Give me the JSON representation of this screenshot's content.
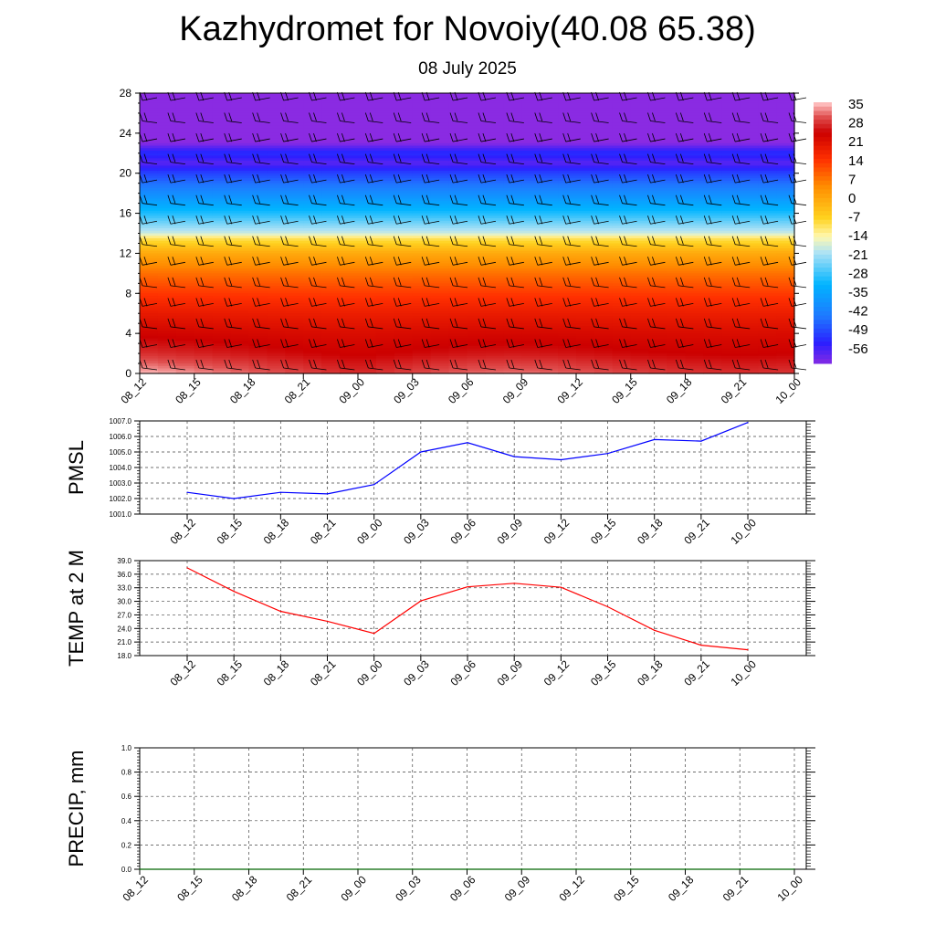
{
  "header": {
    "title": "Kazhydromet for Novoiy(40.08 65.38)",
    "subtitle": "08 July 2025"
  },
  "chart_data": [
    {
      "type": "heatmap",
      "xlabel": "",
      "ylabel": "",
      "x_ticks": [
        "08_12",
        "08_15",
        "08_18",
        "08_21",
        "09_00",
        "09_03",
        "09_06",
        "09_09",
        "09_12",
        "09_15",
        "09_18",
        "09_21",
        "10_00"
      ],
      "y_ticks": [
        "0",
        "4",
        "8",
        "12",
        "16",
        "20",
        "24",
        "28"
      ],
      "ylim": [
        0,
        28
      ],
      "colorbar": {
        "labels": [
          "35",
          "28",
          "21",
          "14",
          "7",
          "0",
          "-7",
          "-14",
          "-21",
          "-28",
          "-35",
          "-42",
          "-49",
          "-56"
        ],
        "stops": [
          {
            "value": -60,
            "color": "#8a2be2"
          },
          {
            "value": -52,
            "color": "#2b1fff"
          },
          {
            "value": -42,
            "color": "#1f78ff"
          },
          {
            "value": -30,
            "color": "#00b4ff"
          },
          {
            "value": -18,
            "color": "#aee2f5"
          },
          {
            "value": -12,
            "color": "#fff8b0"
          },
          {
            "value": -5,
            "color": "#ffd21f"
          },
          {
            "value": 7,
            "color": "#ff8c00"
          },
          {
            "value": 17,
            "color": "#ff3000"
          },
          {
            "value": 27,
            "color": "#cc0000"
          },
          {
            "value": 33,
            "color": "#e05050"
          },
          {
            "value": 38,
            "color": "#ffc0c0"
          }
        ]
      },
      "temperature_profile": {
        "heights": [
          0,
          2,
          4,
          6,
          8,
          10,
          12,
          13.5,
          14,
          16,
          18,
          20,
          21,
          22,
          23,
          28
        ],
        "values": [
          33,
          28,
          25,
          21,
          16,
          10,
          2,
          -8,
          -16,
          -28,
          -38,
          -48,
          -56,
          -50,
          -60,
          -60
        ],
        "diurnal_surface_anomaly": [
          5,
          3,
          1,
          -1,
          -3,
          -1,
          1,
          1.5,
          0.5,
          -1,
          -2,
          -2.5,
          -2
        ]
      },
      "wind_barbs": true
    },
    {
      "type": "line",
      "ylabel": "PMSL",
      "x": [
        "08_12",
        "08_15",
        "08_18",
        "08_21",
        "09_00",
        "09_03",
        "09_06",
        "09_09",
        "09_12",
        "09_15",
        "09_18",
        "09_21",
        "10_00"
      ],
      "ylim": [
        1001.0,
        1007.0
      ],
      "y_ticks": [
        "1001.0",
        "1002.0",
        "1003.0",
        "1004.0",
        "1005.0",
        "1006.0",
        "1007.0"
      ],
      "series": [
        {
          "color": "#0000ff",
          "values": [
            1002.4,
            1002.0,
            1002.4,
            1002.3,
            1002.9,
            1005.0,
            1005.6,
            1004.7,
            1004.5,
            1004.9,
            1005.8,
            1005.7,
            1006.9
          ]
        }
      ]
    },
    {
      "type": "line",
      "ylabel": "TEMP at 2 M",
      "x": [
        "08_12",
        "08_15",
        "08_18",
        "08_21",
        "09_00",
        "09_03",
        "09_06",
        "09_09",
        "09_12",
        "09_15",
        "09_18",
        "09_21",
        "10_00"
      ],
      "ylim": [
        18.0,
        39.0
      ],
      "y_ticks": [
        "18.0",
        "21.0",
        "24.0",
        "27.0",
        "30.0",
        "33.0",
        "36.0",
        "39.0"
      ],
      "series": [
        {
          "color": "#ff0000",
          "values": [
            37.4,
            32.2,
            27.8,
            25.6,
            22.9,
            30.1,
            33.2,
            34.0,
            33.1,
            28.8,
            23.6,
            20.3,
            19.3
          ]
        }
      ]
    },
    {
      "type": "line",
      "ylabel": "PRECIP, mm",
      "x": [
        "08_12",
        "08_15",
        "08_18",
        "08_21",
        "09_00",
        "09_03",
        "09_06",
        "09_09",
        "09_12",
        "09_15",
        "09_18",
        "09_21",
        "10_00"
      ],
      "ylim": [
        0.0,
        1.0
      ],
      "y_ticks": [
        "0.0",
        "0.2",
        "0.4",
        "0.6",
        "0.8",
        "1.0"
      ],
      "series": [
        {
          "color": "#006400",
          "values": [
            0,
            0,
            0,
            0,
            0,
            0,
            0,
            0,
            0,
            0,
            0,
            0,
            0
          ]
        }
      ]
    }
  ]
}
